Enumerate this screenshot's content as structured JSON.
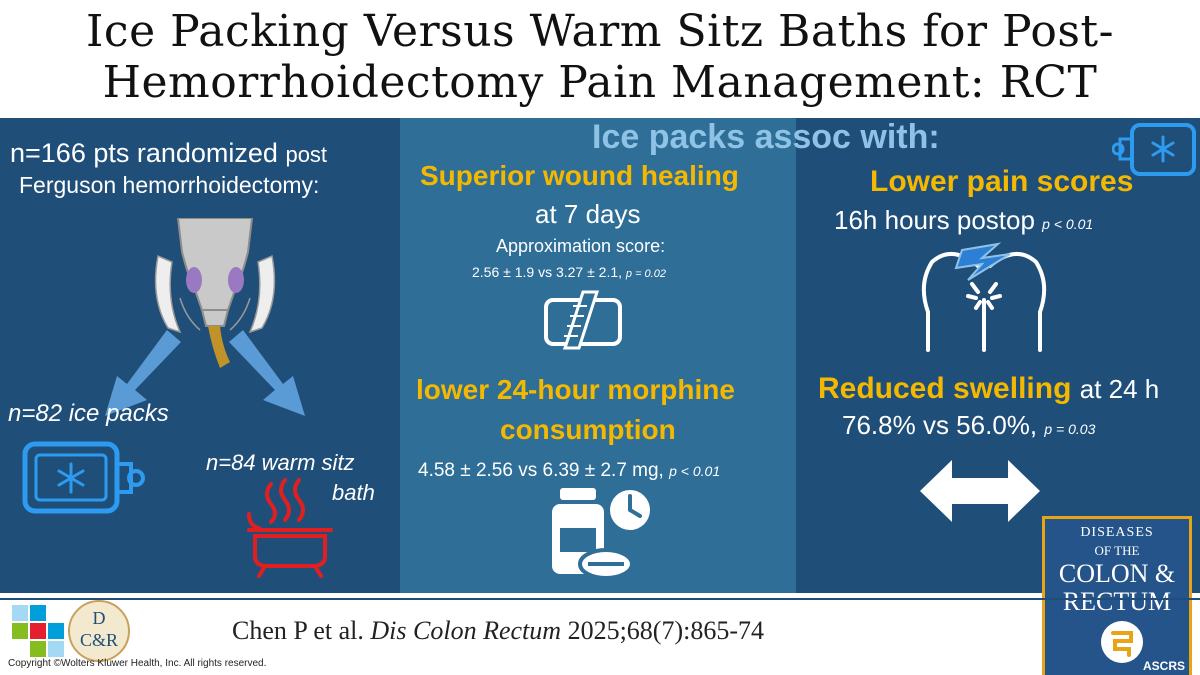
{
  "title": {
    "line1": "Ice Packing Versus Warm Sitz Baths for Post-",
    "line2": "Hemorrhoidectomy Pain Management: RCT"
  },
  "left": {
    "n_main": "n=166 pts randomized",
    "n_post": "post",
    "procedure": "Ferguson hemorrhoidectomy:",
    "ice_group": "n=82 ice packs",
    "warm_line1": "n=84 warm sitz",
    "warm_line2": "bath"
  },
  "header": "Ice packs assoc with:",
  "middle": {
    "wound_title": "Superior wound healing",
    "wound_time": "at 7 days",
    "approx_label": "Approximation score:",
    "approx_values": "2.56 ± 1.9 vs 3.27 ± 2.1,",
    "approx_p": "p = 0.02",
    "morphine_line1": "lower 24-hour morphine",
    "morphine_line2": "consumption",
    "morphine_values": "4.58 ± 2.56 vs 6.39 ± 2.7 mg,",
    "morphine_p": "p < 0.01"
  },
  "right": {
    "pain_title": "Lower pain scores",
    "pain_time": "16h hours postop",
    "pain_p": "p < 0.01",
    "swelling_title": "Reduced swelling",
    "swelling_time": "at 24 h",
    "swelling_values": "76.8% vs 56.0%,",
    "swelling_p": "p = 0.03"
  },
  "footer": {
    "citation_authors": "Chen P et al.",
    "citation_journal": "Dis Colon Rectum",
    "citation_ref": "2025;68(7):865-74",
    "copyright": "Copyright ©Wolters Kluwer Health, Inc. All rights reserved.",
    "dcr_logo_line1": "D",
    "dcr_logo_line2": "C&R"
  },
  "journal_cover": {
    "line1": "DISEASES",
    "line2": "OF THE",
    "line3": "COLON &",
    "line4": "RECTUM",
    "society": "ASCRS"
  },
  "colors": {
    "dark_blue": "#1f4e79",
    "mid_blue": "#2e6e97",
    "yellow": "#f5b800",
    "light_blue": "#8ec3e6",
    "icon_blue": "#2d9bf0",
    "red": "#e02020"
  }
}
